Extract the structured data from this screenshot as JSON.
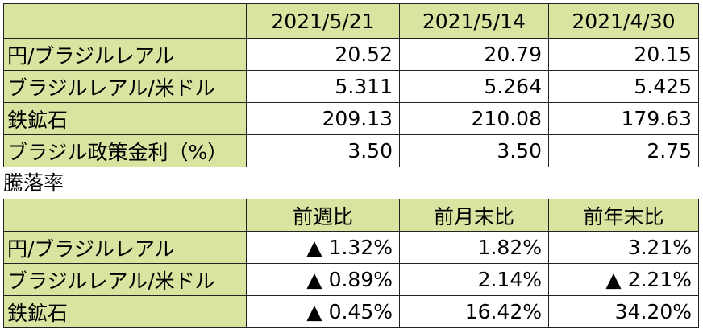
{
  "rates_table": {
    "columns": [
      "2021/5/21",
      "2021/5/14",
      "2021/4/30"
    ],
    "rows": [
      {
        "label": "円/ブラジルレアル",
        "values": [
          "20.52",
          "20.79",
          "20.15"
        ]
      },
      {
        "label": "ブラジルレアル/米ドル",
        "values": [
          "5.311",
          "5.264",
          "5.425"
        ]
      },
      {
        "label": "鉄鉱石",
        "values": [
          "209.13",
          "210.08",
          "179.63"
        ]
      },
      {
        "label": "ブラジル政策金利（%）",
        "values": [
          "3.50",
          "3.50",
          "2.75"
        ]
      }
    ]
  },
  "change_caption": "騰落率",
  "change_table": {
    "columns": [
      "前週比",
      "前月末比",
      "前年末比"
    ],
    "rows": [
      {
        "label": "円/ブラジルレアル",
        "values": [
          "▲ 1.32%",
          "1.82%",
          "3.21%"
        ]
      },
      {
        "label": "ブラジルレアル/米ドル",
        "values": [
          "▲ 0.89%",
          "2.14%",
          "▲ 2.21%"
        ]
      },
      {
        "label": "鉄鉱石",
        "values": [
          "▲ 0.45%",
          "16.42%",
          "34.20%"
        ]
      }
    ]
  }
}
